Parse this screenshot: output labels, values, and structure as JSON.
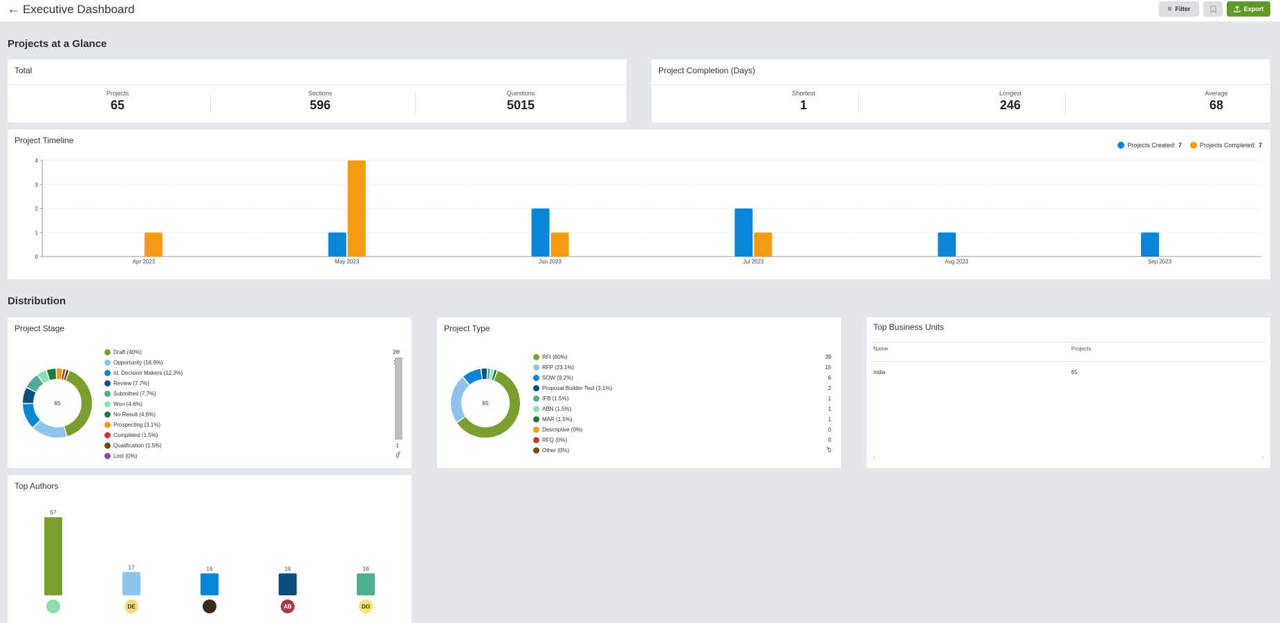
{
  "header": {
    "title": "Executive Dashboard",
    "filter_label": "Filter",
    "export_label": "Export"
  },
  "sections": {
    "glance": "Projects at a Glance",
    "distribution": "Distribution"
  },
  "total": {
    "title": "Total",
    "stats": [
      {
        "label": "Projects",
        "value": "65"
      },
      {
        "label": "Sections",
        "value": "596"
      },
      {
        "label": "Questions",
        "value": "5015"
      }
    ]
  },
  "completion": {
    "title": "Project Completion (Days)",
    "stats": [
      {
        "label": "Shortest",
        "value": "1"
      },
      {
        "label": "Longest",
        "value": "246"
      },
      {
        "label": "Average",
        "value": "68"
      }
    ]
  },
  "timeline": {
    "title": "Project Timeline",
    "legend": [
      {
        "label": "Projects Created:",
        "value": "7",
        "color": "#0a84d6"
      },
      {
        "label": "Projects Completed:",
        "value": "7",
        "color": "#f39c12"
      }
    ]
  },
  "chart_data": [
    {
      "type": "bar",
      "categories": [
        "Apr 2023",
        "May 2023",
        "Jun 2023",
        "Jul 2023",
        "Aug 2023",
        "Sep 2023"
      ],
      "series": [
        {
          "name": "Projects Created",
          "values": [
            0,
            1,
            2,
            2,
            1,
            1
          ],
          "color": "#0a84d6"
        },
        {
          "name": "Projects Completed",
          "values": [
            1,
            4,
            1,
            1,
            0,
            0
          ],
          "color": "#f39c12"
        }
      ],
      "ylim": [
        0,
        4
      ],
      "yticks": [
        "0",
        "1",
        "2",
        "3",
        "4"
      ],
      "grid": true
    },
    {
      "type": "bar",
      "categories": [
        "",
        "DE",
        "",
        "AB",
        "DO"
      ],
      "values": [
        57,
        17,
        16,
        16,
        16
      ],
      "colors": [
        "#7a9f30",
        "#8ec3ea",
        "#0a84d6",
        "#0b4f7e",
        "#4fae92"
      ]
    }
  ],
  "project_stage": {
    "title": "Project Stage",
    "total": "65",
    "items": [
      {
        "label": "Draft (40%)",
        "count": "26",
        "value": 26,
        "color": "#7a9f30"
      },
      {
        "label": "Opportunity (16.9%)",
        "count": "11",
        "value": 11,
        "color": "#8ec3ea"
      },
      {
        "label": "Id. Decision Makers (12.3%)",
        "count": "8",
        "value": 8,
        "color": "#0a84d6"
      },
      {
        "label": "Review (7.7%)",
        "count": "5",
        "value": 5,
        "color": "#0b4f7e"
      },
      {
        "label": "Submitted (7.7%)",
        "count": "5",
        "value": 5,
        "color": "#4fae92"
      },
      {
        "label": "Won (4.6%)",
        "count": "3",
        "value": 3,
        "color": "#8fdcb0"
      },
      {
        "label": "No Result (4.6%)",
        "count": "3",
        "value": 3,
        "color": "#1e7a3a"
      },
      {
        "label": "Prospecting (3.1%)",
        "count": "2",
        "value": 2,
        "color": "#f39c12"
      },
      {
        "label": "Completed (1.5%)",
        "count": "1",
        "value": 1,
        "color": "#c0392b"
      },
      {
        "label": "Qualification (1.5%)",
        "count": "1",
        "value": 1,
        "color": "#7a4410"
      },
      {
        "label": "Lost (0%)",
        "count": "0",
        "value": 0,
        "color": "#8e44ad"
      }
    ]
  },
  "project_type": {
    "title": "Project Type",
    "total": "65",
    "items": [
      {
        "label": "RFI (60%)",
        "count": "39",
        "value": 39,
        "color": "#7a9f30"
      },
      {
        "label": "RFP (23.1%)",
        "count": "15",
        "value": 15,
        "color": "#8ec3ea"
      },
      {
        "label": "SOW (9.2%)",
        "count": "6",
        "value": 6,
        "color": "#0a84d6"
      },
      {
        "label": "Proposal Builder Test (3.1%)",
        "count": "2",
        "value": 2,
        "color": "#0b4f7e"
      },
      {
        "label": "IFB (1.5%)",
        "count": "1",
        "value": 1,
        "color": "#4fae92"
      },
      {
        "label": "ABN (1.5%)",
        "count": "1",
        "value": 1,
        "color": "#8fdcb0"
      },
      {
        "label": "MAR (1.5%)",
        "count": "1",
        "value": 1,
        "color": "#1e7a3a"
      },
      {
        "label": "Descriptive (0%)",
        "count": "0",
        "value": 0,
        "color": "#f39c12"
      },
      {
        "label": "RFQ (0%)",
        "count": "0",
        "value": 0,
        "color": "#c0392b"
      },
      {
        "label": "Other (0%)",
        "count": "0",
        "value": 0,
        "color": "#7a4410"
      }
    ]
  },
  "business_units": {
    "title": "Top Business Units",
    "columns": [
      "Name",
      "Projects"
    ],
    "rows": [
      [
        "India",
        "65"
      ]
    ]
  },
  "authors": {
    "title": "Top Authors",
    "labels": [
      "57",
      "17",
      "16",
      "16",
      "16"
    ],
    "avatars": [
      {
        "initials": "",
        "bg": "#8fdcb0",
        "fg": "#333"
      },
      {
        "initials": "DE",
        "bg": "#f4dc7a",
        "fg": "#333"
      },
      {
        "initials": "",
        "bg": "#3a2a1c",
        "fg": "#fff"
      },
      {
        "initials": "AB",
        "bg": "#a83a4e",
        "fg": "#fff"
      },
      {
        "initials": "DO",
        "bg": "#f7e36b",
        "fg": "#333"
      }
    ]
  }
}
